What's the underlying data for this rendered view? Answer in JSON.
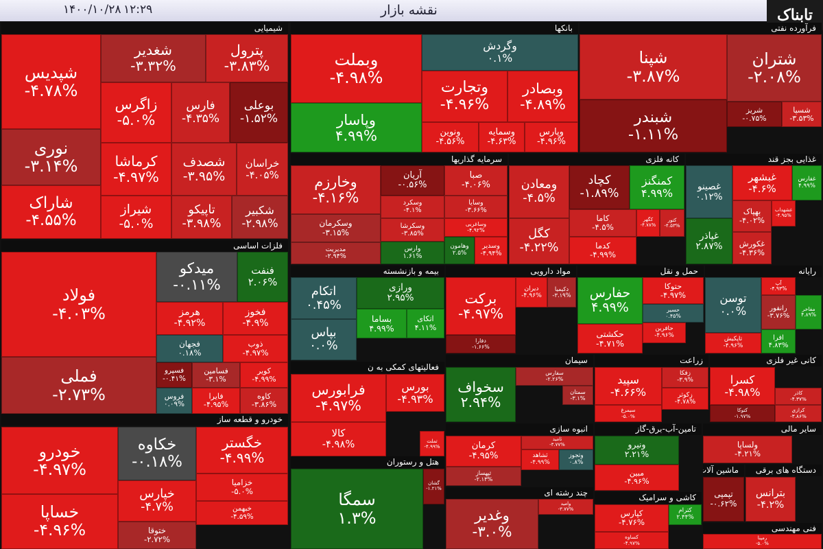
{
  "header": {
    "title": "نقشه بازار",
    "time": "۱۲:۲۹",
    "date": "۱۴۰۰/۱۰/۲۸",
    "logo": "تابناک"
  },
  "sectors": [
    {
      "name": "شیمیایی",
      "tiles": [
        [
          "شپدیس",
          "-۴.۷۸%"
        ],
        [
          "نوری",
          "-۳.۱۴%"
        ],
        [
          "شاراک",
          "-۴.۵۵%"
        ],
        [
          "شغدیر",
          "-۳.۳۲%"
        ],
        [
          "پترول",
          "-۳.۸۳%"
        ],
        [
          "زاگرس",
          "-۵.۰%"
        ],
        [
          "فارس",
          "-۴.۳۵%"
        ],
        [
          "بوعلی",
          "-۱.۵۲%"
        ],
        [
          "کرماشا",
          "-۴.۹۷%"
        ],
        [
          "شصدف",
          "-۳.۹۵%"
        ],
        [
          "خراسان",
          "-۴.۰۵%"
        ],
        [
          "شیراز",
          "-۵.۰%"
        ],
        [
          "تاپیکو",
          "-۳.۹۸%"
        ],
        [
          "شکبیر",
          "-۲.۹۸%"
        ]
      ]
    },
    {
      "name": "فلزات اساسی",
      "tiles": [
        [
          "فولاد",
          "-۴.۰۳%"
        ],
        [
          "فملی",
          "-۲.۷۳%"
        ],
        [
          "میدکو",
          "-۰.۱۱%"
        ],
        [
          "فنفت",
          "۲.۰۶%"
        ],
        [
          "هرمز",
          "-۴.۹۲%"
        ],
        [
          "فخوز",
          "-۴.۹%"
        ],
        [
          "فجهان",
          "۰.۱۸%"
        ],
        [
          "ذوب",
          "-۴.۹۷%"
        ],
        [
          "فسپرو",
          "-۰.۴۱%"
        ],
        [
          "فسامین",
          "-۳.۱%"
        ],
        [
          "کویر",
          "-۴.۹۹%"
        ],
        [
          "فروس",
          "۰.۰۹%"
        ],
        [
          "فایرا",
          "-۴.۹۵%"
        ],
        [
          "کاوه",
          "-۳.۸۶%"
        ]
      ]
    },
    {
      "name": "خودرو و قطعه ساز",
      "tiles": [
        [
          "خودرو",
          "-۴.۹۷%"
        ],
        [
          "خساپا",
          "-۴.۹۶%"
        ],
        [
          "خکاوه",
          "-۰.۱۸%"
        ],
        [
          "خگستر",
          "-۴.۹۹%"
        ],
        [
          "خپارس",
          "-۴.۷%"
        ],
        [
          "خزامیا",
          "-۵.۰%"
        ],
        [
          "خبهمن",
          "-۴.۵۹%"
        ],
        [
          "ختوقا",
          "-۲.۷۲%"
        ]
      ]
    },
    {
      "name": "بانکها",
      "tiles": [
        [
          "وبملت",
          "-۴.۹۸%"
        ],
        [
          "وپاسار",
          "۴.۹۹%"
        ],
        [
          "وگردش",
          "۰.۱%"
        ],
        [
          "وتجارت",
          "-۴.۹۶%"
        ],
        [
          "وبصادر",
          "-۴.۸۹%"
        ],
        [
          "ونوین",
          "-۴.۵۶%"
        ],
        [
          "وسمایه",
          "-۴.۶۳%"
        ],
        [
          "وپارس",
          "-۴.۹۶%"
        ]
      ]
    },
    {
      "name": "فرآورده نفتی",
      "tiles": [
        [
          "شپنا",
          "-۳.۸۷%"
        ],
        [
          "شبندر",
          "-۱.۱۱%"
        ],
        [
          "شتران",
          "-۲.۰۸%"
        ],
        [
          "شریز",
          "-۰.۷۵%"
        ],
        [
          "شسپا",
          "-۳.۵۳%"
        ]
      ]
    },
    {
      "name": "سرمایه گذاریها",
      "tiles": [
        [
          "وخارزم",
          "-۴.۱۶%"
        ],
        [
          "وسکرمان",
          "-۳.۱۵%"
        ],
        [
          "مدیریت",
          "-۲.۹۴%"
        ],
        [
          "آریان",
          "-۰.۵۶%"
        ],
        [
          "صبا",
          "-۴.۰۶%"
        ],
        [
          "وسکرد",
          "-۴.۱%"
        ],
        [
          "وسایا",
          "-۳.۶۶%"
        ],
        [
          "وسکرشا",
          "-۳.۸۵%"
        ],
        [
          "وساغربی",
          "-۴.۹۲%"
        ],
        [
          "وارس",
          "۱.۶۱%"
        ],
        [
          "وهامون",
          "۲.۵%"
        ],
        [
          "وسدیر",
          "-۴.۹۴%"
        ]
      ]
    },
    {
      "name": "کانه فلزی",
      "tiles": [
        [
          "ومعادن",
          "-۴.۵%"
        ],
        [
          "کگل",
          "-۴.۲۲%"
        ],
        [
          "کچاد",
          "-۱.۸۹%"
        ],
        [
          "کمنگنز",
          "۴.۹۹%"
        ],
        [
          "کاما",
          "-۴.۵%"
        ],
        [
          "کدما",
          "-۴.۹۹%"
        ],
        [
          "کگهر",
          "-۴.۷۸%"
        ],
        [
          "کتور",
          "-۴.۵۳%"
        ]
      ]
    },
    {
      "name": "غذایی بجز قند",
      "tiles": [
        [
          "غصینو",
          "۰.۱۲%"
        ],
        [
          "غپاذر",
          "۲.۸۷%"
        ],
        [
          "غبشهر",
          "-۴.۶%"
        ],
        [
          "غفارس",
          "۴.۹۹%"
        ],
        [
          "بهپاک",
          "-۴.۰۲%"
        ],
        [
          "غشهداب",
          "-۴.۹۵%"
        ],
        [
          "غکورش",
          "-۴.۳۶%"
        ]
      ]
    },
    {
      "name": "بیمه و بازنشسته",
      "tiles": [
        [
          "اتکام",
          "۰.۴۵%"
        ],
        [
          "بپاس",
          "۰.۰%"
        ],
        [
          "ورازی",
          "۲.۹۵%"
        ],
        [
          "بساما",
          "۴.۹۹%"
        ],
        [
          "اتکای",
          "۴.۱۱%"
        ]
      ]
    },
    {
      "name": "مواد دارویی",
      "tiles": [
        [
          "برکت",
          "-۴.۹۷%"
        ],
        [
          "دفارا",
          "-۱.۶۶%"
        ],
        [
          "دیران",
          "-۴.۹۶%"
        ],
        [
          "دکیمیا",
          "-۳.۱۹%"
        ]
      ]
    },
    {
      "name": "حمل و نقل",
      "tiles": [
        [
          "حفارس",
          "۴.۹۹%"
        ],
        [
          "حکشتی",
          "-۴.۷۱%"
        ],
        [
          "حتوکا",
          "-۴.۹۷%"
        ],
        [
          "حسیر",
          "۰.۴۵%"
        ],
        [
          "حافرین",
          "-۴.۹۶%"
        ]
      ]
    },
    {
      "name": "رایانه",
      "tiles": [
        [
          "توسن",
          "۰.۰%"
        ],
        [
          "تاپکیش",
          "-۴.۹۶%"
        ],
        [
          "آپ",
          "-۴.۹۳%"
        ],
        [
          "رانفور",
          "-۳.۷۶%"
        ],
        [
          "مفاخر",
          "۴.۸۹%"
        ],
        [
          "افرا",
          "۴.۸۳%"
        ]
      ]
    },
    {
      "name": "فعالیتهای کمکی به ن",
      "tiles": [
        [
          "فرابورس",
          "-۴.۹۷%"
        ],
        [
          "کالا",
          "-۴.۹۸%"
        ],
        [
          "بورس",
          "-۴.۹۳%"
        ],
        [
          "تملت",
          "-۴.۹۹%"
        ]
      ]
    },
    {
      "name": "سیمان",
      "tiles": [
        [
          "سخواف",
          "۲.۹۴%"
        ],
        [
          "سفارس",
          "-۲.۲۶%"
        ],
        [
          "سمتان",
          "-۳.۱%"
        ]
      ]
    },
    {
      "name": "زراعت",
      "tiles": [
        [
          "سپید",
          "-۴.۶۶%"
        ],
        [
          "سیمرغ",
          "-۵.۰%"
        ],
        [
          "زفکا",
          "-۳.۹%"
        ],
        [
          "زکوثر",
          "-۴.۷۸%"
        ]
      ]
    },
    {
      "name": "کانی غیر فلزی",
      "tiles": [
        [
          "کسرا",
          "-۴.۹۸%"
        ],
        [
          "کتوکا",
          "-۱.۹۷%"
        ],
        [
          "کاذر",
          "-۴.۳۷%"
        ],
        [
          "کرازی",
          "-۳.۸۶%"
        ]
      ]
    },
    {
      "name": "انبوه سازی",
      "tiles": [
        [
          "کرمان",
          "-۴.۹۵%"
        ],
        [
          "ثپهساز",
          "-۲.۱۳%"
        ],
        [
          "ثامید",
          "-۳.۷۷%"
        ],
        [
          "ثشاهد",
          "-۴.۹۹%"
        ],
        [
          "وتجوز",
          "۰.۸%"
        ]
      ]
    },
    {
      "name": "هتل و رستوران",
      "tiles": [
        [
          "سمگا",
          "۱.۳%"
        ],
        [
          "گشان",
          "-۱.۲۱%"
        ]
      ]
    },
    {
      "name": "تامین-آب-برق-گاز",
      "tiles": [
        [
          "ونیرو",
          "۲.۲۱%"
        ],
        [
          "مبین",
          "-۴.۹۶%"
        ]
      ]
    },
    {
      "name": "سایر مالی",
      "tiles": [
        [
          "ولساپا",
          "-۴.۲۱%"
        ]
      ]
    },
    {
      "name": "چند رشته ای",
      "tiles": [
        [
          "وغدیر",
          "-۳.۰%"
        ],
        [
          "وامید",
          "-۳.۷۷%"
        ]
      ]
    },
    {
      "name": "کاشی و سرامیک",
      "tiles": [
        [
          "کپارس",
          "-۴.۷۶%"
        ],
        [
          "کساوه",
          "-۴.۹۷%"
        ],
        [
          "کترام",
          "۲.۴۴%"
        ]
      ]
    },
    {
      "name": "ماشین آلات",
      "tiles": [
        [
          "تپمپی",
          "-۰.۶۲%"
        ]
      ]
    },
    {
      "name": "دستگاه های برقی",
      "tiles": [
        [
          "بترانس",
          "-۴.۲%"
        ]
      ]
    },
    {
      "name": "فنی مهندسی",
      "tiles": [
        [
          "رمپنا",
          "-۵.۰%"
        ]
      ]
    }
  ]
}
